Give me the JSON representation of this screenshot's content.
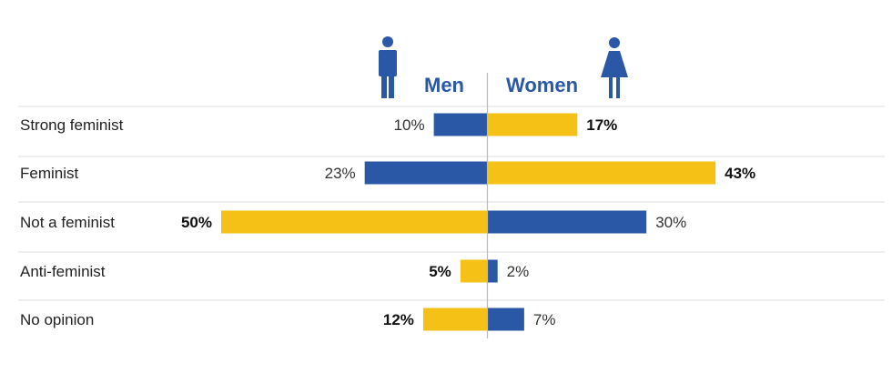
{
  "chart_data": {
    "type": "bar",
    "orientation": "diverging-horizontal",
    "series": [
      {
        "name": "Men",
        "values": [
          10,
          23,
          50,
          5,
          12
        ]
      },
      {
        "name": "Women",
        "values": [
          17,
          43,
          30,
          2,
          7
        ]
      }
    ],
    "categories": [
      "Strong feminist",
      "Feminist",
      "Not a feminist",
      "Anti-feminist",
      "No opinion"
    ],
    "value_suffix": "%",
    "colors": {
      "larger": "#f5c116",
      "smaller": "#2a57a6",
      "header": "#2a57a6"
    },
    "icons": [
      "man-icon",
      "woman-icon"
    ],
    "xlim": [
      0,
      50
    ],
    "grid": false,
    "legend": "top-center"
  }
}
